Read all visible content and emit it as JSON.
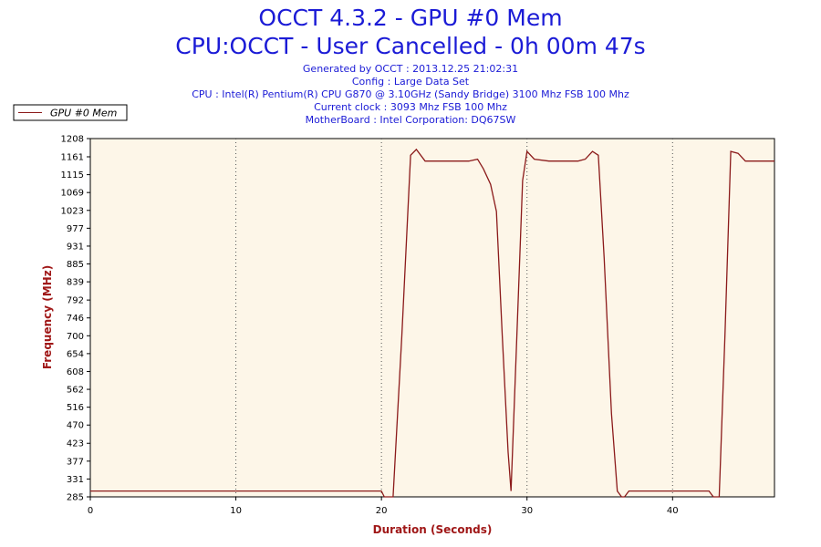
{
  "header": {
    "title_line1": "OCCT 4.3.2 - GPU #0 Mem",
    "title_line2": "CPU:OCCT - User Cancelled - 0h 00m 47s",
    "info_lines": [
      "Generated by OCCT : 2013.12.25 21:02:31",
      "Config : Large Data Set",
      "CPU : Intel(R) Pentium(R) CPU G870 @ 3.10GHz (Sandy Bridge) 3100 Mhz FSB 100 Mhz",
      "Current clock : 3093 Mhz FSB 100 Mhz",
      "MotherBoard : Intel Corporation: DQ67SW"
    ]
  },
  "colors": {
    "title": "#1b1bd6",
    "plot_background": "#fdf6e8",
    "series_line": "#8b1a1a",
    "axis_title": "#a01818"
  },
  "chart_data": {
    "type": "line",
    "xlabel": "Duration (Seconds)",
    "ylabel": "Frequency (MHz)",
    "xlim": [
      0,
      47
    ],
    "ylim": [
      285,
      1208
    ],
    "x_ticks": [
      0,
      10,
      20,
      30,
      40
    ],
    "y_ticks": [
      285,
      331,
      377,
      423,
      470,
      516,
      562,
      608,
      654,
      700,
      746,
      792,
      839,
      885,
      931,
      977,
      1023,
      1069,
      1115,
      1161,
      1208
    ],
    "grid": "vertical-dotted",
    "legend_position": "top-left",
    "series": [
      {
        "name": "GPU #0 Mem",
        "x": [
          0,
          20.0,
          20.2,
          20.8,
          21.4,
          22.0,
          22.4,
          23.0,
          24.0,
          25.0,
          26.0,
          26.6,
          27.0,
          27.5,
          27.9,
          28.3,
          28.7,
          28.9,
          29.3,
          29.7,
          30.0,
          30.5,
          31.5,
          32.5,
          33.5,
          34.0,
          34.5,
          34.9,
          35.3,
          35.8,
          36.2,
          36.5,
          36.7,
          37.0,
          38.0,
          39.0,
          40.0,
          41.0,
          42.0,
          42.5,
          42.8,
          43.2,
          43.6,
          44.0,
          44.5,
          45.0,
          46.0,
          47.0
        ],
        "y": [
          300,
          300,
          285,
          285,
          700,
          1165,
          1180,
          1150,
          1150,
          1150,
          1150,
          1155,
          1130,
          1090,
          1020,
          700,
          400,
          300,
          700,
          1100,
          1175,
          1155,
          1150,
          1150,
          1150,
          1155,
          1175,
          1165,
          900,
          500,
          300,
          285,
          285,
          300,
          300,
          300,
          300,
          300,
          300,
          300,
          285,
          285,
          700,
          1175,
          1170,
          1150,
          1150,
          1150
        ]
      }
    ]
  }
}
